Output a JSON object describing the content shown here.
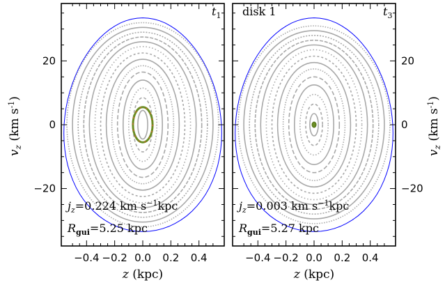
{
  "chart_data": [
    {
      "type": "scatter",
      "panel": "left",
      "xlabel": "z (kpc)",
      "ylabel": "v_z (km s^-1)",
      "xlim": [
        -0.58,
        0.58
      ],
      "ylim": [
        -38,
        38
      ],
      "xticks": [
        -0.4,
        -0.2,
        0.0,
        0.2,
        0.4
      ],
      "xtick_labels": [
        "−0.4",
        "−0.2",
        "0.0",
        "0.2",
        "0.4"
      ],
      "yticks": [
        -20,
        0,
        20
      ],
      "ytick_labels": [
        "−20",
        "0",
        "20"
      ],
      "corner_label": "t1",
      "annotation_jz": "jz=0.224 km s−1kpc",
      "annotation_rgui": "Rgui=5.25 kpc",
      "boundary": {
        "z_max": 0.56,
        "v_max": 33.5,
        "color": "#0000ff"
      },
      "orbits": [
        {
          "z_amp": 0.035,
          "v_amp": 4.5
        },
        {
          "z_amp": 0.07,
          "v_amp": 8.5
        },
        {
          "z_amp": 0.1,
          "v_amp": 11.5
        },
        {
          "z_amp": 0.14,
          "v_amp": 14
        },
        {
          "z_amp": 0.18,
          "v_amp": 16.5
        },
        {
          "z_amp": 0.22,
          "v_amp": 18.5
        },
        {
          "z_amp": 0.26,
          "v_amp": 20.5
        },
        {
          "z_amp": 0.3,
          "v_amp": 22.5
        },
        {
          "z_amp": 0.34,
          "v_amp": 24.5
        },
        {
          "z_amp": 0.38,
          "v_amp": 26
        },
        {
          "z_amp": 0.42,
          "v_amp": 27.5
        },
        {
          "z_amp": 0.46,
          "v_amp": 29
        },
        {
          "z_amp": 0.5,
          "v_amp": 30.5
        },
        {
          "z_amp": 0.54,
          "v_amp": 32
        }
      ],
      "highlight_orbit": {
        "z_amp": 0.07,
        "v_amp": 5.5,
        "color": "#6b8e23",
        "accent": "#cc6633"
      }
    },
    {
      "type": "scatter",
      "panel": "right",
      "xlabel": "z (kpc)",
      "ylabel": "v_z (km s^-1)",
      "xlim": [
        -0.58,
        0.58
      ],
      "ylim": [
        -38,
        38
      ],
      "xticks": [
        -0.4,
        -0.2,
        0.0,
        0.2,
        0.4
      ],
      "xtick_labels": [
        "−0.4",
        "−0.2",
        "0.0",
        "0.2",
        "0.4"
      ],
      "yticks": [
        -20,
        0,
        20
      ],
      "ytick_labels": [
        "−20",
        "0",
        "20"
      ],
      "corner_label": "t3",
      "title_label": "disk 1",
      "annotation_jz": "jz=0.003 km s−1kpc",
      "annotation_rgui": "Rgui=5.27 kpc",
      "boundary": {
        "z_max": 0.56,
        "v_max": 33.5,
        "color": "#0000ff"
      },
      "orbits": [
        {
          "z_amp": 0.03,
          "v_amp": 3.5
        },
        {
          "z_amp": 0.06,
          "v_amp": 6.5
        },
        {
          "z_amp": 0.1,
          "v_amp": 9.5
        },
        {
          "z_amp": 0.14,
          "v_amp": 12.5
        },
        {
          "z_amp": 0.18,
          "v_amp": 15
        },
        {
          "z_amp": 0.22,
          "v_amp": 17.5
        },
        {
          "z_amp": 0.26,
          "v_amp": 19.5
        },
        {
          "z_amp": 0.3,
          "v_amp": 21.5
        },
        {
          "z_amp": 0.34,
          "v_amp": 23.5
        },
        {
          "z_amp": 0.38,
          "v_amp": 25
        },
        {
          "z_amp": 0.42,
          "v_amp": 26.5
        },
        {
          "z_amp": 0.46,
          "v_amp": 28
        },
        {
          "z_amp": 0.5,
          "v_amp": 29.5
        },
        {
          "z_amp": 0.54,
          "v_amp": 31
        }
      ],
      "highlight_orbit": {
        "z_amp": 0.006,
        "v_amp": 0.9,
        "color": "#6b8e23"
      }
    }
  ]
}
